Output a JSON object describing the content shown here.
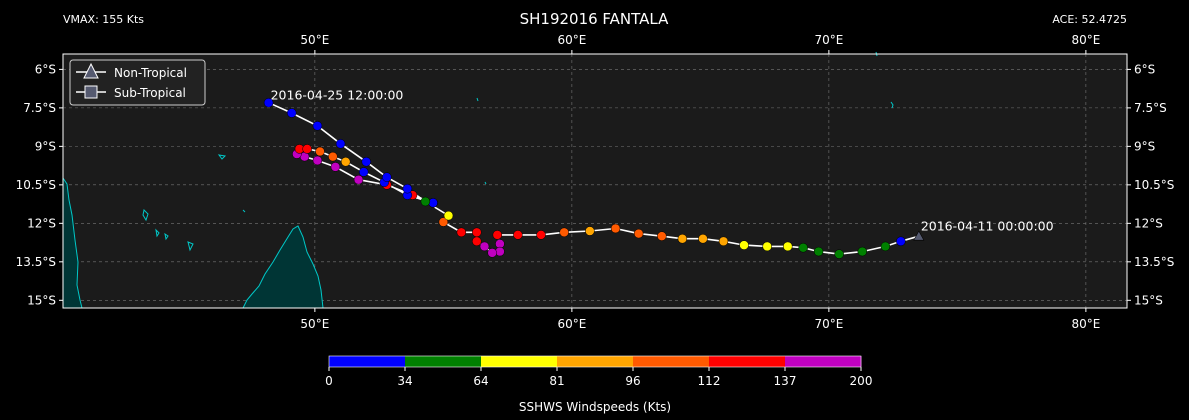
{
  "header": {
    "title": "SH192016 FANTALA",
    "vmax": "VMAX: 155 Kts",
    "ace": "ACE: 52.4725"
  },
  "colors": {
    "background": "#000000",
    "ocean": "#1b1b1b",
    "land_fill": "#003535",
    "coast": "#00c8c8",
    "track": "#ffffff",
    "grid": "#777777",
    "marker_edge": "#000000"
  },
  "chart_data": {
    "type": "scatter",
    "title": "SH192016 FANTALA",
    "xlabel": "",
    "ylabel": "",
    "xlim": [
      40.2,
      81.6
    ],
    "ylim": [
      -15.3,
      -5.4
    ],
    "grid": true,
    "x_ticks": [
      50,
      60,
      70,
      80
    ],
    "x_tick_labels": [
      "50°E",
      "60°E",
      "70°E",
      "80°E"
    ],
    "y_ticks": [
      -6,
      -7.5,
      -9,
      -10.5,
      -12,
      -13.5,
      -15
    ],
    "y_tick_labels": [
      "6°S",
      "7.5°S",
      "9°S",
      "10.5°S",
      "12°S",
      "13.5°S",
      "15°S"
    ],
    "legend": {
      "placement": "top-left",
      "entries": [
        {
          "label": "Non-Tropical",
          "marker": "triangle"
        },
        {
          "label": "Sub-Tropical",
          "marker": "square"
        }
      ]
    },
    "annotations": [
      {
        "text": "2016-04-25 12:00:00",
        "lon": 48.2,
        "lat": -7.3
      },
      {
        "text": "2016-04-11 00:00:00",
        "lon": 73.5,
        "lat": -12.4
      }
    ],
    "colorbar": {
      "label": "SSHWS Windspeeds (Kts)",
      "bounds": [
        0,
        34,
        64,
        81,
        96,
        112,
        137,
        200
      ],
      "colors": [
        "#0000ff",
        "#008000",
        "#ffff00",
        "#ffa500",
        "#ff5a00",
        "#ff0000",
        "#c000c0"
      ]
    },
    "track": [
      {
        "lon": 73.5,
        "lat": -12.5,
        "kts": 30,
        "type": "non-tropical"
      },
      {
        "lon": 72.8,
        "lat": -12.7,
        "kts": 30
      },
      {
        "lon": 72.2,
        "lat": -12.9,
        "kts": 35
      },
      {
        "lon": 71.3,
        "lat": -13.1,
        "kts": 40
      },
      {
        "lon": 70.4,
        "lat": -13.2,
        "kts": 45
      },
      {
        "lon": 69.6,
        "lat": -13.1,
        "kts": 50
      },
      {
        "lon": 69.0,
        "lat": -12.95,
        "kts": 60
      },
      {
        "lon": 68.4,
        "lat": -12.9,
        "kts": 65
      },
      {
        "lon": 67.6,
        "lat": -12.9,
        "kts": 70
      },
      {
        "lon": 66.7,
        "lat": -12.85,
        "kts": 75
      },
      {
        "lon": 65.9,
        "lat": -12.7,
        "kts": 85
      },
      {
        "lon": 65.1,
        "lat": -12.6,
        "kts": 90
      },
      {
        "lon": 64.3,
        "lat": -12.6,
        "kts": 95
      },
      {
        "lon": 63.5,
        "lat": -12.5,
        "kts": 100
      },
      {
        "lon": 62.6,
        "lat": -12.4,
        "kts": 105
      },
      {
        "lon": 61.7,
        "lat": -12.2,
        "kts": 110
      },
      {
        "lon": 60.7,
        "lat": -12.3,
        "kts": 95
      },
      {
        "lon": 59.7,
        "lat": -12.35,
        "kts": 105
      },
      {
        "lon": 58.8,
        "lat": -12.45,
        "kts": 115
      },
      {
        "lon": 57.9,
        "lat": -12.45,
        "kts": 125
      },
      {
        "lon": 57.1,
        "lat": -12.45,
        "kts": 130
      },
      {
        "lon": 57.2,
        "lat": -12.8,
        "kts": 140
      },
      {
        "lon": 57.2,
        "lat": -13.1,
        "kts": 150
      },
      {
        "lon": 56.9,
        "lat": -13.15,
        "kts": 155
      },
      {
        "lon": 56.6,
        "lat": -12.9,
        "kts": 145
      },
      {
        "lon": 56.3,
        "lat": -12.7,
        "kts": 135
      },
      {
        "lon": 56.3,
        "lat": -12.35,
        "kts": 125
      },
      {
        "lon": 55.7,
        "lat": -12.35,
        "kts": 115
      },
      {
        "lon": 55.0,
        "lat": -11.95,
        "kts": 105
      },
      {
        "lon": 55.2,
        "lat": -11.7,
        "kts": 80
      },
      {
        "lon": 54.3,
        "lat": -11.15,
        "kts": 60
      },
      {
        "lon": 53.6,
        "lat": -10.65,
        "kts": 30
      },
      {
        "lon": 52.8,
        "lat": -10.2,
        "kts": 30
      },
      {
        "lon": 52.0,
        "lat": -9.6,
        "kts": 30
      },
      {
        "lon": 51.0,
        "lat": -8.9,
        "kts": 30
      },
      {
        "lon": 50.1,
        "lat": -8.2,
        "kts": 30
      },
      {
        "lon": 49.1,
        "lat": -7.7,
        "kts": 30
      },
      {
        "lon": 48.2,
        "lat": -7.3,
        "kts": 25
      }
    ],
    "track_west_branch": [
      {
        "lon": 54.6,
        "lat": -11.2,
        "kts": 125
      },
      {
        "lon": 53.8,
        "lat": -10.9,
        "kts": 120
      },
      {
        "lon": 52.8,
        "lat": -10.5,
        "kts": 115
      },
      {
        "lon": 51.7,
        "lat": -10.3,
        "kts": 140
      },
      {
        "lon": 50.8,
        "lat": -9.8,
        "kts": 140
      },
      {
        "lon": 50.1,
        "lat": -9.55,
        "kts": 140
      },
      {
        "lon": 49.6,
        "lat": -9.4,
        "kts": 140
      },
      {
        "lon": 49.3,
        "lat": -9.3,
        "kts": 140
      },
      {
        "lon": 49.4,
        "lat": -9.1,
        "kts": 125
      },
      {
        "lon": 49.7,
        "lat": -9.1,
        "kts": 125
      },
      {
        "lon": 50.2,
        "lat": -9.2,
        "kts": 105
      },
      {
        "lon": 50.7,
        "lat": -9.4,
        "kts": 100
      },
      {
        "lon": 51.2,
        "lat": -9.6,
        "kts": 95
      },
      {
        "lon": 51.9,
        "lat": -10.0,
        "kts": 30
      },
      {
        "lon": 52.7,
        "lat": -10.4,
        "kts": 30
      },
      {
        "lon": 53.6,
        "lat": -10.9,
        "kts": 30
      },
      {
        "lon": 54.6,
        "lat": -11.2,
        "kts": 30
      }
    ]
  }
}
